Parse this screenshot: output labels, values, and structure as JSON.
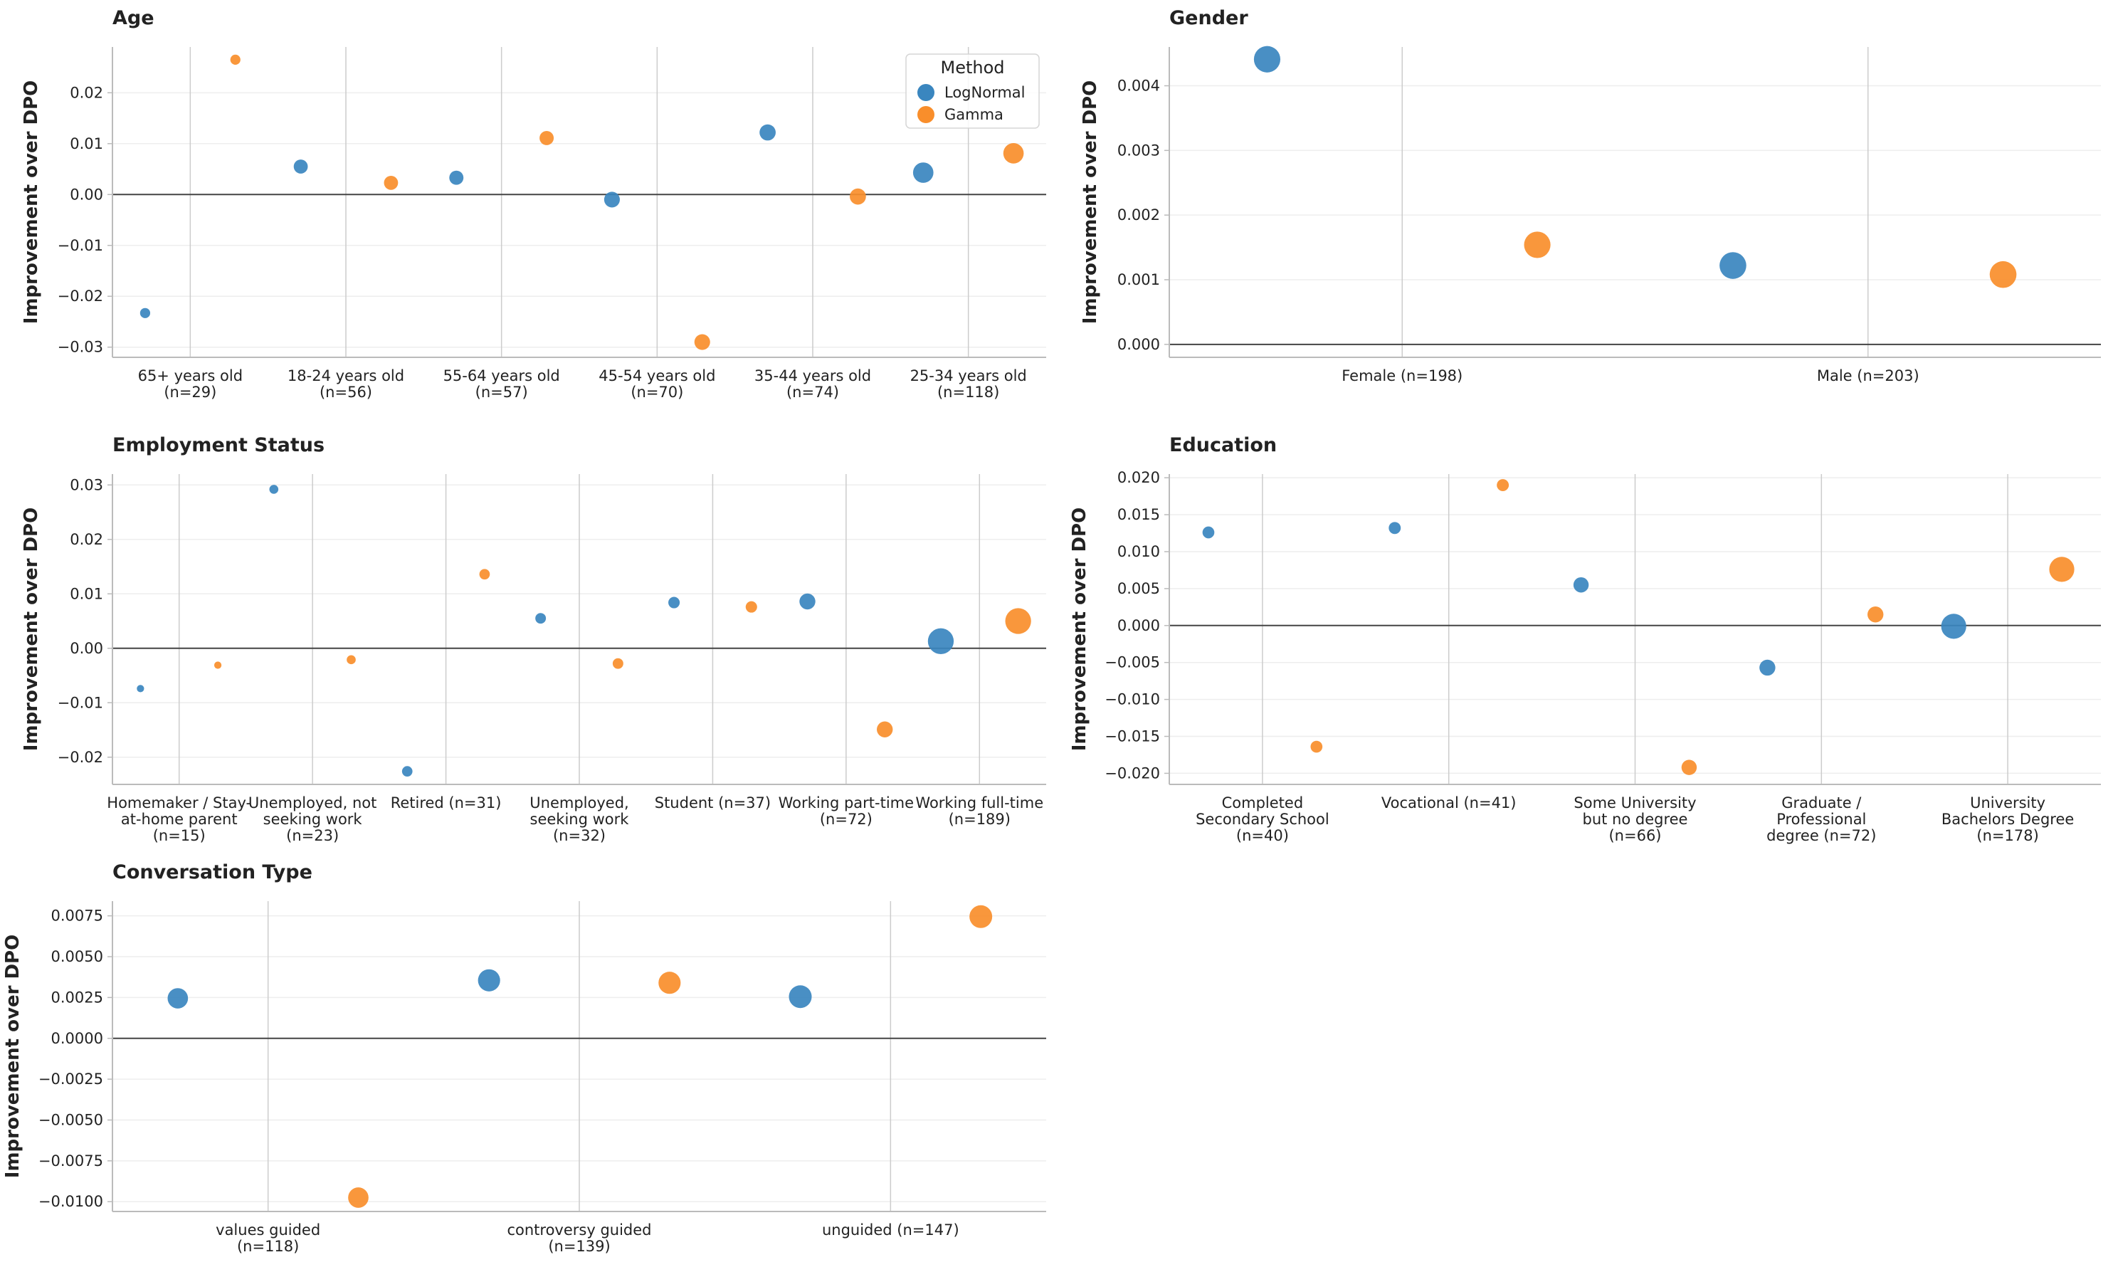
{
  "colors": {
    "LogNormal": "#3a86bf",
    "Gamma": "#f98e2b",
    "zero_line": "#444444",
    "spine": "#bbbbbb",
    "grid": "#cccccc"
  },
  "legend": {
    "title": "Method",
    "entries": [
      "LogNormal",
      "Gamma"
    ]
  },
  "chart_data": [
    {
      "type": "scatter",
      "title": "Age",
      "ylabel": "Improvement over DPO",
      "ylim": [
        -0.032,
        0.029
      ],
      "yticks": [
        -0.03,
        -0.02,
        -0.01,
        0.0,
        0.01,
        0.02
      ],
      "ytick_labels": [
        "−0.03",
        "−0.02",
        "−0.01",
        "0.00",
        "0.01",
        "0.02"
      ],
      "show_legend": true,
      "categories": [
        {
          "label": [
            "65+ years old",
            "(n=29)"
          ],
          "n": 29
        },
        {
          "label": [
            "18-24 years old",
            "(n=56)"
          ],
          "n": 56
        },
        {
          "label": [
            "55-64 years old",
            "(n=57)"
          ],
          "n": 57
        },
        {
          "label": [
            "45-54 years old",
            "(n=70)"
          ],
          "n": 70
        },
        {
          "label": [
            "35-44 years old",
            "(n=74)"
          ],
          "n": 74
        },
        {
          "label": [
            "25-34 years old",
            "(n=118)"
          ],
          "n": 118
        }
      ],
      "series": [
        {
          "name": "LogNormal",
          "values": [
            -0.0233,
            0.0055,
            0.0033,
            -0.001,
            0.0122,
            0.0043
          ]
        },
        {
          "name": "Gamma",
          "values": [
            0.0265,
            0.0023,
            0.0111,
            -0.029,
            -0.0004,
            0.0081
          ]
        }
      ]
    },
    {
      "type": "scatter",
      "title": "Gender",
      "ylabel": "Improvement over DPO",
      "ylim": [
        -0.0002,
        0.0046
      ],
      "yticks": [
        0.0,
        0.001,
        0.002,
        0.003,
        0.004
      ],
      "ytick_labels": [
        "0.000",
        "0.001",
        "0.002",
        "0.003",
        "0.004"
      ],
      "show_legend": false,
      "categories": [
        {
          "label": [
            "Female (n=198)"
          ],
          "n": 198
        },
        {
          "label": [
            "Male (n=203)"
          ],
          "n": 203
        }
      ],
      "series": [
        {
          "name": "LogNormal",
          "values": [
            0.00441,
            0.00122
          ]
        },
        {
          "name": "Gamma",
          "values": [
            0.00154,
            0.00108
          ]
        }
      ]
    },
    {
      "type": "scatter",
      "title": "Employment Status",
      "ylabel": "Improvement over DPO",
      "ylim": [
        -0.025,
        0.032
      ],
      "yticks": [
        -0.02,
        -0.01,
        0.0,
        0.01,
        0.02,
        0.03
      ],
      "ytick_labels": [
        "−0.02",
        "−0.01",
        "0.00",
        "0.01",
        "0.02",
        "0.03"
      ],
      "show_legend": false,
      "categories": [
        {
          "label": [
            "Homemaker / Stay-",
            "at-home parent",
            "(n=15)"
          ],
          "n": 15
        },
        {
          "label": [
            "Unemployed, not",
            "seeking work",
            "(n=23)"
          ],
          "n": 23
        },
        {
          "label": [
            "Retired (n=31)"
          ],
          "n": 31
        },
        {
          "label": [
            "Unemployed,",
            "seeking work",
            "(n=32)"
          ],
          "n": 32
        },
        {
          "label": [
            "Student (n=37)"
          ],
          "n": 37
        },
        {
          "label": [
            "Working part-time",
            "(n=72)"
          ],
          "n": 72
        },
        {
          "label": [
            "Working full-time",
            "(n=189)"
          ],
          "n": 189
        }
      ],
      "series": [
        {
          "name": "LogNormal",
          "values": [
            -0.0074,
            0.0292,
            -0.0226,
            0.0055,
            0.0084,
            0.0086,
            0.0013
          ]
        },
        {
          "name": "Gamma",
          "values": [
            -0.0031,
            -0.0021,
            0.0136,
            -0.0028,
            0.0076,
            -0.0149,
            0.005
          ]
        }
      ]
    },
    {
      "type": "scatter",
      "title": "Education",
      "ylabel": "Improvement over DPO",
      "ylim": [
        -0.0215,
        0.0205
      ],
      "yticks": [
        -0.02,
        -0.015,
        -0.01,
        -0.005,
        0.0,
        0.005,
        0.01,
        0.015,
        0.02
      ],
      "ytick_labels": [
        "−0.020",
        "−0.015",
        "−0.010",
        "−0.005",
        "0.000",
        "0.005",
        "0.010",
        "0.015",
        "0.020"
      ],
      "show_legend": false,
      "categories": [
        {
          "label": [
            "Completed",
            "Secondary School",
            "(n=40)"
          ],
          "n": 40
        },
        {
          "label": [
            "Vocational (n=41)"
          ],
          "n": 41
        },
        {
          "label": [
            "Some University",
            "but no degree",
            "(n=66)"
          ],
          "n": 66
        },
        {
          "label": [
            "Graduate /",
            "Professional",
            "degree (n=72)"
          ],
          "n": 72
        },
        {
          "label": [
            "University",
            "Bachelors Degree",
            "(n=178)"
          ],
          "n": 178
        }
      ],
      "series": [
        {
          "name": "LogNormal",
          "values": [
            0.0126,
            0.0132,
            0.0055,
            -0.0057,
            -0.0001
          ]
        },
        {
          "name": "Gamma",
          "values": [
            -0.0164,
            0.019,
            -0.0192,
            0.0015,
            0.0076
          ]
        }
      ]
    },
    {
      "type": "scatter",
      "title": "Conversation Type",
      "ylabel": "Improvement over DPO",
      "ylim": [
        -0.0106,
        0.0084
      ],
      "yticks": [
        -0.01,
        -0.0075,
        -0.005,
        -0.0025,
        0.0,
        0.0025,
        0.005,
        0.0075
      ],
      "ytick_labels": [
        "−0.0100",
        "−0.0075",
        "−0.0050",
        "−0.0025",
        "0.0000",
        "0.0025",
        "0.0050",
        "0.0075"
      ],
      "show_legend": false,
      "categories": [
        {
          "label": [
            "values guided",
            "(n=118)"
          ],
          "n": 118
        },
        {
          "label": [
            "controversy guided",
            "(n=139)"
          ],
          "n": 139
        },
        {
          "label": [
            "unguided (n=147)"
          ],
          "n": 147
        }
      ],
      "series": [
        {
          "name": "LogNormal",
          "values": [
            0.00245,
            0.00355,
            0.00255
          ]
        },
        {
          "name": "Gamma",
          "values": [
            -0.00975,
            0.0034,
            0.00745
          ]
        }
      ]
    }
  ]
}
